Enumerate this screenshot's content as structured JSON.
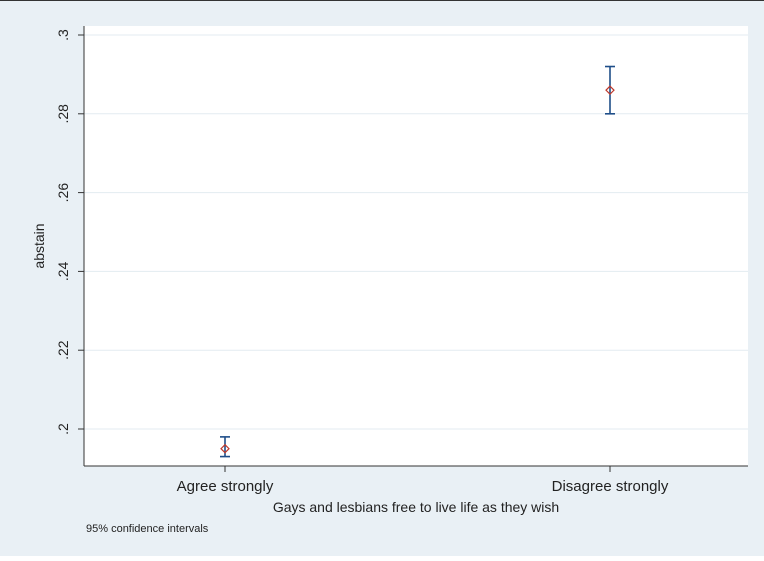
{
  "chart_data": {
    "type": "scatter",
    "title": "",
    "xlabel": "Gays and lesbians free to live life as they wish",
    "ylabel": "abstain",
    "categories": [
      "Agree strongly",
      "Disagree strongly"
    ],
    "points": [
      {
        "category": "Agree strongly",
        "value": 0.195,
        "ci_low": 0.193,
        "ci_high": 0.198
      },
      {
        "category": "Disagree strongly",
        "value": 0.286,
        "ci_low": 0.28,
        "ci_high": 0.292
      }
    ],
    "y_ticks": [
      {
        "value": 0.2,
        "label": ".2"
      },
      {
        "value": 0.22,
        "label": ".22"
      },
      {
        "value": 0.24,
        "label": ".24"
      },
      {
        "value": 0.26,
        "label": ".26"
      },
      {
        "value": 0.28,
        "label": ".28"
      },
      {
        "value": 0.3,
        "label": ".3"
      }
    ],
    "ylim": [
      0.19,
      0.3
    ],
    "grid": true,
    "legend": "none",
    "note": "95% confidence intervals",
    "colors": {
      "background": "#e9f0f5",
      "plot_area": "#ffffff",
      "gridline": "#e3ebf1",
      "ci_bar": "#1f4e89",
      "marker": "#c0392b"
    }
  }
}
